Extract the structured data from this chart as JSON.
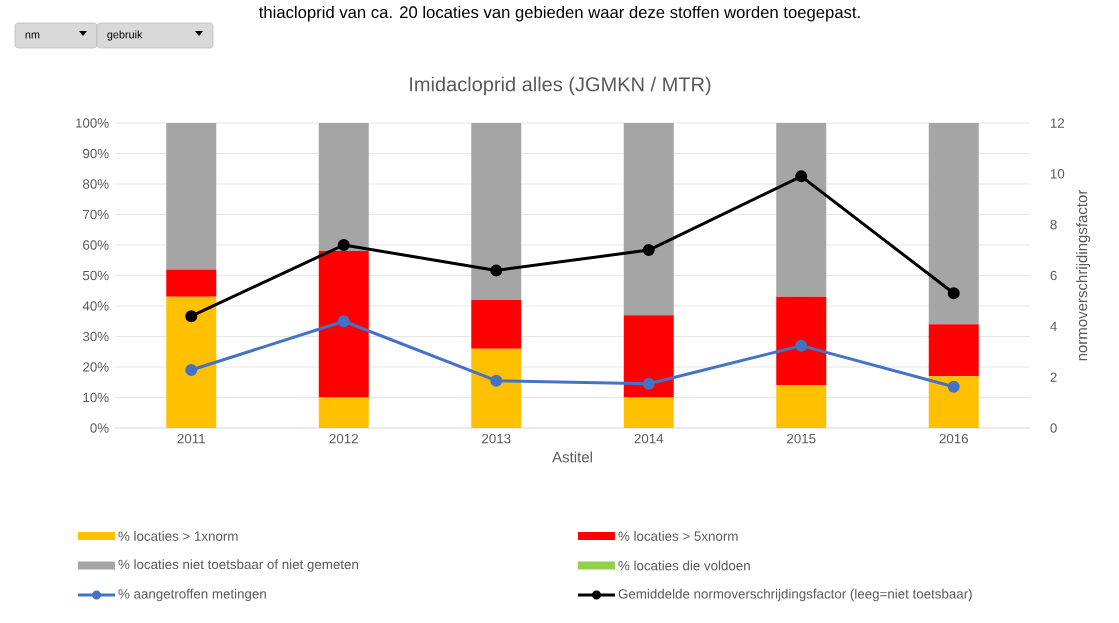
{
  "chart_data": {
    "type": "bar",
    "stacked": true,
    "title": "Imidacloprid  alles (JGMKN / MTR)",
    "xlabel": "Astitel",
    "y2label": "normoverschrijdingsfactor",
    "annotations": [
      "thiacloprid van ca. 20 locaties van gebieden waar deze stoffen worden toegepast.",
      "nm",
      "gebruik"
    ],
    "categories": [
      "2011",
      "2012",
      "2013",
      "2014",
      "2015",
      "2016"
    ],
    "series": [
      {
        "name": "% locaties > 1xnorm",
        "color": "#ffc000",
        "values": [
          43,
          10,
          26,
          10,
          14,
          17
        ]
      },
      {
        "name": "% locaties > 5xnorm",
        "color": "#ff0000",
        "values": [
          9,
          48,
          16,
          27,
          29,
          17
        ]
      },
      {
        "name": "% locaties niet toetsbaar of niet gemeten",
        "color": "#a5a5a5",
        "values": [
          48,
          42,
          58,
          63,
          57,
          66
        ]
      },
      {
        "name": "% locaties die voldoen",
        "color": "#92d050",
        "values": [
          0,
          0,
          0,
          0,
          0,
          0
        ]
      },
      {
        "name": "% aangetroffen metingen",
        "type": "line",
        "color": "#4472c4",
        "values": [
          19,
          35,
          15.5,
          14.5,
          27,
          13.5
        ]
      },
      {
        "name": "Gemiddelde normoverschrijdingsfactor (leeg=niet toetsbaar)",
        "type": "line",
        "axis": "y2",
        "color": "#000000",
        "values": [
          4.4,
          7.2,
          6.2,
          7.0,
          9.9,
          5.3
        ]
      }
    ],
    "ylim": [
      0,
      100
    ],
    "yticks": [
      {
        "value": 0,
        "label": "0%"
      },
      {
        "value": 10,
        "label": "10%"
      },
      {
        "value": 20,
        "label": "20%"
      },
      {
        "value": 30,
        "label": "30%"
      },
      {
        "value": 40,
        "label": "40%"
      },
      {
        "value": 50,
        "label": "50%"
      },
      {
        "value": 60,
        "label": "60%"
      },
      {
        "value": 70,
        "label": "70%"
      },
      {
        "value": 80,
        "label": "80%"
      },
      {
        "value": 90,
        "label": "90%"
      },
      {
        "value": 100,
        "label": "100%"
      }
    ],
    "y2lim": [
      0,
      12
    ],
    "y2ticks": [
      0,
      2,
      4,
      6,
      8,
      10,
      12
    ],
    "grid": "y",
    "legend": "bottom",
    "marker": "circle",
    "line_style": "solid"
  }
}
